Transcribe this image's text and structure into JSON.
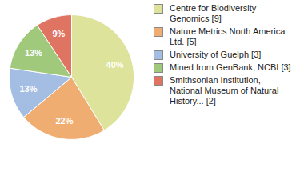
{
  "chart_data": {
    "type": "pie",
    "categories": [
      "Centre for Biodiversity Genomics [9]",
      "Nature Metrics North America Ltd. [5]",
      "University of Guelph [3]",
      "Mined from GenBank, NCBI [3]",
      "Smithsonian Institution, National Museum of Natural History... [2]"
    ],
    "values": [
      40,
      22,
      13,
      13,
      9
    ],
    "value_labels": [
      "40%",
      "22%",
      "13%",
      "13%",
      "9%"
    ],
    "colors": [
      "#dde39a",
      "#f0ad72",
      "#a3bee2",
      "#a0c97b",
      "#e07462"
    ],
    "data_labels": true,
    "legend": "right"
  }
}
